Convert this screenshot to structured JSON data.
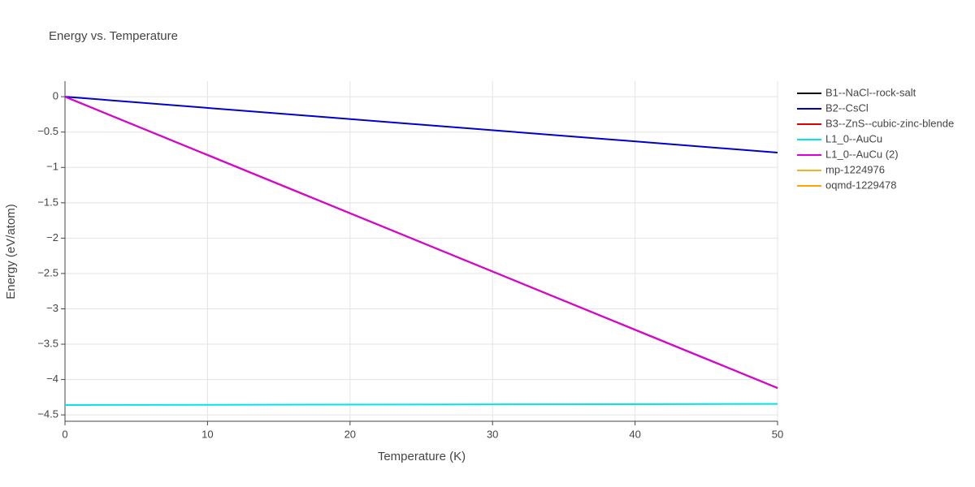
{
  "chart_data": {
    "type": "line",
    "title": "Energy vs. Temperature",
    "x_label": "Temperature (K)",
    "y_label": "Energy (eV/atom)",
    "x": [
      0,
      50
    ],
    "series": [
      {
        "name": "B1--NaCl--rock-salt",
        "color": "#000000",
        "values": [
          0,
          -4.12
        ]
      },
      {
        "name": "B2--CsCl",
        "color": "#0000cc",
        "values": [
          0,
          -0.79
        ]
      },
      {
        "name": "B3--ZnS--cubic-zinc-blende",
        "color": "#e00000",
        "values": [
          0,
          -4.12
        ]
      },
      {
        "name": "L1_0--AuCu",
        "color": "#00e5e5",
        "values": [
          -4.36,
          -4.345
        ]
      },
      {
        "name": "L1_0--AuCu (2)",
        "color": "#dd00dd",
        "values": [
          0,
          -4.12
        ]
      },
      {
        "name": "mp-1224976",
        "color": "#f5b025",
        "values": [
          null,
          null
        ]
      },
      {
        "name": "oqmd-1229478",
        "color": "#ffa500",
        "values": [
          null,
          null
        ]
      }
    ],
    "xlim": [
      0,
      50
    ],
    "xticks": [
      0,
      10,
      20,
      30,
      40,
      50
    ],
    "ylim": [
      -4.59,
      0.22
    ],
    "yticks": [
      0,
      {
        "value": -0.5,
        "label": "−0.5"
      },
      {
        "value": -1,
        "label": "−1"
      },
      {
        "value": -1.5,
        "label": "−1.5"
      },
      {
        "value": -2,
        "label": "−2"
      },
      {
        "value": -2.5,
        "label": "−2.5"
      },
      {
        "value": -3,
        "label": "−3"
      },
      {
        "value": -3.5,
        "label": "−3.5"
      },
      {
        "value": -4,
        "label": "−4"
      },
      {
        "value": -4.5,
        "label": "−4.5"
      }
    ],
    "grid": true,
    "legend": "right"
  }
}
